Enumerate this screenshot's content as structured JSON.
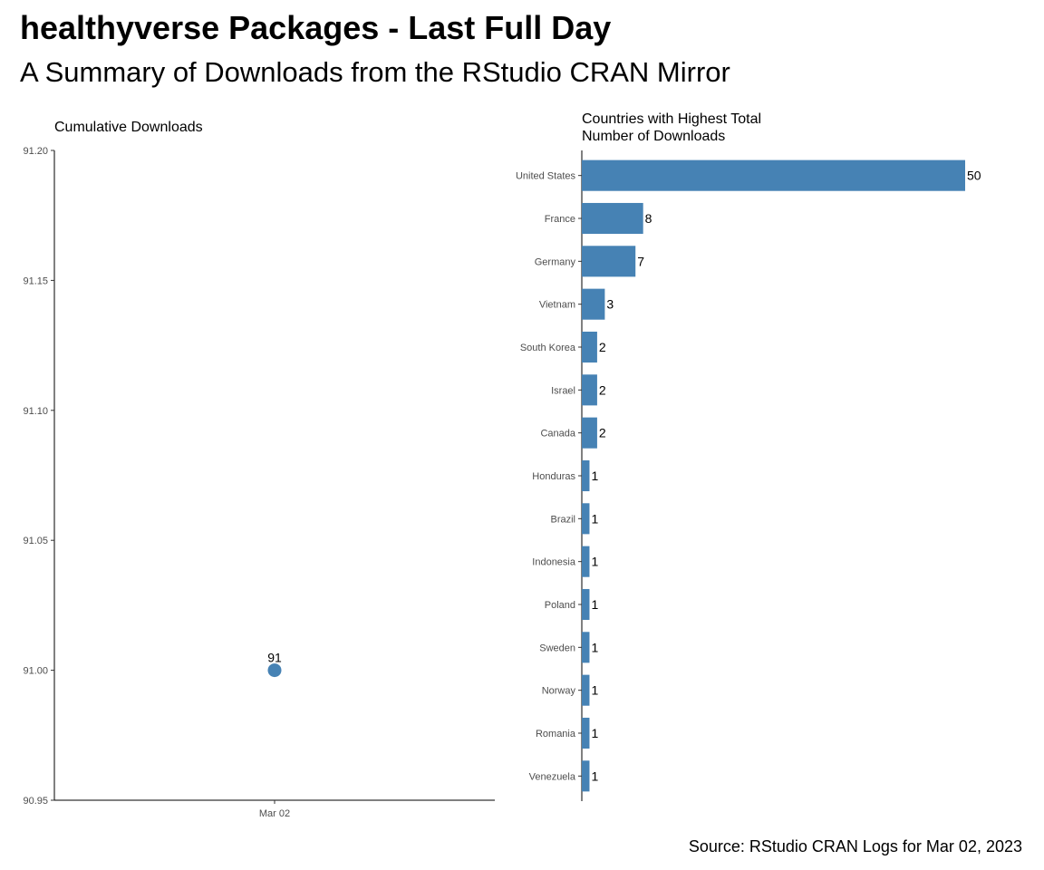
{
  "title": "healthyverse Packages - Last Full Day",
  "subtitle": "A Summary of Downloads from the RStudio CRAN Mirror",
  "caption": "Source: RStudio CRAN Logs for Mar 02, 2023",
  "colors": {
    "bar": "#4682B4",
    "point": "#4682B4",
    "axis": "#000000",
    "tick_text": "#4d4d4d"
  },
  "chart_data": [
    {
      "type": "scatter",
      "title": "Cumulative Downloads",
      "xlabel": "",
      "ylabel": "",
      "categories": [
        "Mar 02"
      ],
      "values": [
        91
      ],
      "data_labels": [
        "91"
      ],
      "ylim": [
        90.95,
        91.2
      ],
      "yticks": [
        "90.95",
        "91.00",
        "91.05",
        "91.10",
        "91.15",
        "91.20"
      ],
      "grid": false
    },
    {
      "type": "bar",
      "orientation": "horizontal",
      "title": "Countries with Highest Total Number of Downloads",
      "title_lines": [
        "Countries with Highest Total",
        "Number of Downloads"
      ],
      "xlabel": "",
      "ylabel": "",
      "categories": [
        "United States",
        "France",
        "Germany",
        "Vietnam",
        "South Korea",
        "Israel",
        "Canada",
        "Honduras",
        "Brazil",
        "Indonesia",
        "Poland",
        "Sweden",
        "Norway",
        "Romania",
        "Venezuela"
      ],
      "values": [
        50,
        8,
        7,
        3,
        2,
        2,
        2,
        1,
        1,
        1,
        1,
        1,
        1,
        1,
        1
      ],
      "xlim": [
        0,
        50
      ],
      "grid": false
    }
  ]
}
